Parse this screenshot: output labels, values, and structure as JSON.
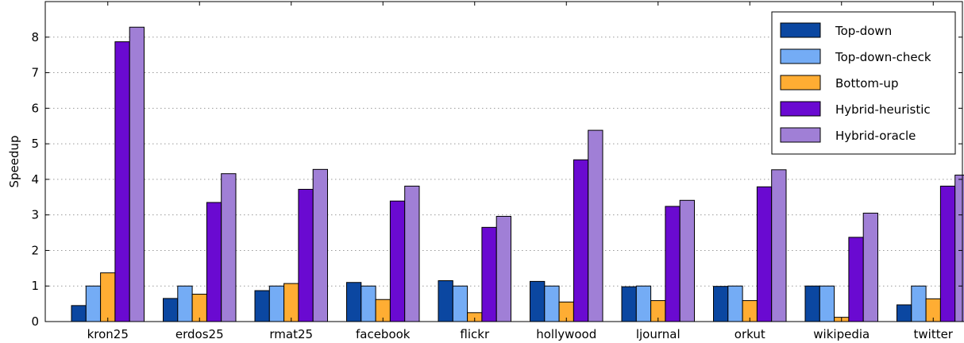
{
  "chart_data": {
    "type": "bar",
    "title": "",
    "xlabel": "",
    "ylabel": "Speedup",
    "ylim": [
      0,
      9
    ],
    "yticks": [
      0,
      1,
      2,
      3,
      4,
      5,
      6,
      7,
      8
    ],
    "grid": "horizontal dotted",
    "legend_position": "top-right",
    "categories": [
      "kron25",
      "erdos25",
      "rmat25",
      "facebook",
      "flickr",
      "hollywood",
      "ljournal",
      "orkut",
      "wikipedia",
      "twitter"
    ],
    "series": [
      {
        "name": "Top-down",
        "color": "#0b47a1",
        "values": [
          0.45,
          0.65,
          0.87,
          1.1,
          1.15,
          1.13,
          0.98,
          0.99,
          1.0,
          0.47
        ]
      },
      {
        "name": "Top-down-check",
        "color": "#74acf5",
        "values": [
          1.0,
          1.0,
          1.0,
          1.0,
          1.0,
          1.0,
          1.0,
          1.0,
          1.0,
          1.0
        ]
      },
      {
        "name": "Bottom-up",
        "color": "#ffad33",
        "values": [
          1.37,
          0.77,
          1.07,
          0.62,
          0.25,
          0.55,
          0.59,
          0.59,
          0.12,
          0.64
        ]
      },
      {
        "name": "Hybrid-heuristic",
        "color": "#6a0ad1",
        "values": [
          7.87,
          3.35,
          3.72,
          3.39,
          2.65,
          4.55,
          3.24,
          3.79,
          2.37,
          3.81
        ]
      },
      {
        "name": "Hybrid-oracle",
        "color": "#a07fd6",
        "values": [
          8.28,
          4.16,
          4.28,
          3.81,
          2.96,
          5.38,
          3.41,
          4.27,
          3.05,
          4.12
        ]
      }
    ]
  }
}
